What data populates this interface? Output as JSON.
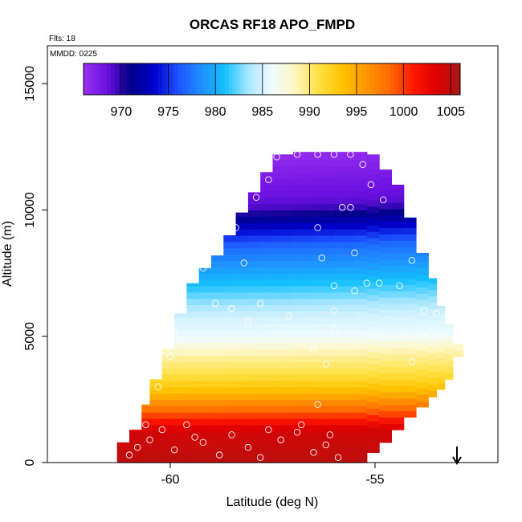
{
  "chart_data": {
    "type": "heatmap",
    "title": "ORCAS RF18 APO_FMPD",
    "annotations": {
      "flights": "Flts: 18",
      "mmdd": "MMDD: 0225"
    },
    "xlabel": "Latitude (deg N)",
    "ylabel": "Altitude (m)",
    "xlim": [
      -63,
      -52
    ],
    "ylim": [
      0,
      16500
    ],
    "xticks": [
      -60,
      -55
    ],
    "xtick_labels": [
      "-60",
      "-55"
    ],
    "yticks": [
      0,
      5000,
      10000,
      15000
    ],
    "ytick_labels": [
      "0",
      "5000",
      "10000",
      "15000"
    ],
    "colorbar": {
      "min": 966,
      "max": 1006,
      "ticks": [
        970,
        975,
        980,
        985,
        990,
        995,
        1000,
        1005
      ],
      "tick_labels": [
        "970",
        "975",
        "980",
        "985",
        "990",
        "995",
        "1000",
        "1005"
      ],
      "colors": [
        "#9a30f0",
        "#6a10e0",
        "#000088",
        "#0000cc",
        "#1e50ff",
        "#1f8fff",
        "#14c0ff",
        "#a8e6ff",
        "#f0fbff",
        "#fff6c0",
        "#ffe040",
        "#ffc300",
        "#ff9600",
        "#ff6a00",
        "#ff1800",
        "#dd0000",
        "#a81818"
      ]
    },
    "field_envelope": [
      [
        -61.3,
        0,
        800
      ],
      [
        -61.0,
        0,
        1300
      ],
      [
        -60.7,
        0,
        2300
      ],
      [
        -60.5,
        0,
        3300
      ],
      [
        -60.2,
        0,
        4500
      ],
      [
        -59.9,
        0,
        5900
      ],
      [
        -59.6,
        0,
        7100
      ],
      [
        -59.3,
        0,
        7700
      ],
      [
        -59.0,
        0,
        8200
      ],
      [
        -58.7,
        0,
        9000
      ],
      [
        -58.4,
        0,
        9900
      ],
      [
        -58.1,
        0,
        10700
      ],
      [
        -57.8,
        0,
        11500
      ],
      [
        -57.5,
        0,
        12200
      ],
      [
        -57.0,
        0,
        12300
      ],
      [
        -56.5,
        0,
        12300
      ],
      [
        -56.0,
        0,
        12300
      ],
      [
        -55.5,
        0,
        12300
      ],
      [
        -55.2,
        400,
        12200
      ],
      [
        -54.9,
        800,
        11600
      ],
      [
        -54.6,
        1300,
        11000
      ],
      [
        -54.3,
        1800,
        9700
      ],
      [
        -54.0,
        2200,
        8300
      ],
      [
        -53.7,
        2600,
        7300
      ],
      [
        -53.5,
        2900,
        6200
      ],
      [
        -53.3,
        3300,
        5500
      ],
      [
        -53.1,
        4200,
        4700
      ]
    ],
    "profile_levels": [
      [
        0,
        1005
      ],
      [
        1300,
        1004
      ],
      [
        2000,
        999
      ],
      [
        2800,
        994
      ],
      [
        3500,
        991
      ],
      [
        4300,
        989
      ],
      [
        5000,
        986
      ],
      [
        5800,
        985
      ],
      [
        6800,
        982
      ],
      [
        7800,
        979
      ],
      [
        8600,
        977
      ],
      [
        9400,
        973
      ],
      [
        10200,
        969
      ],
      [
        11000,
        968
      ],
      [
        11800,
        967
      ],
      [
        12500,
        966
      ]
    ],
    "observations": [
      [
        -61.0,
        300
      ],
      [
        -60.8,
        600
      ],
      [
        -60.5,
        900
      ],
      [
        -60.2,
        1300
      ],
      [
        -59.9,
        500
      ],
      [
        -59.6,
        1500
      ],
      [
        -59.2,
        800
      ],
      [
        -58.8,
        300
      ],
      [
        -58.5,
        1100
      ],
      [
        -58.1,
        600
      ],
      [
        -57.8,
        200
      ],
      [
        -57.3,
        900
      ],
      [
        -56.9,
        1200
      ],
      [
        -56.5,
        400
      ],
      [
        -56.2,
        700
      ],
      [
        -55.9,
        200
      ],
      [
        -61.1,
        1100
      ],
      [
        -60.6,
        1500
      ],
      [
        -59.4,
        1000
      ],
      [
        -57.6,
        1300
      ],
      [
        -56.8,
        1500
      ],
      [
        -56.1,
        1100
      ],
      [
        -60.3,
        3000
      ],
      [
        -60.0,
        4200
      ],
      [
        -59.9,
        5200
      ],
      [
        -59.7,
        6900
      ],
      [
        -59.2,
        7700
      ],
      [
        -58.9,
        6300
      ],
      [
        -58.5,
        6100
      ],
      [
        -58.2,
        7900
      ],
      [
        -58.4,
        9300
      ],
      [
        -57.9,
        10500
      ],
      [
        -57.6,
        11200
      ],
      [
        -57.4,
        12100
      ],
      [
        -56.9,
        12200
      ],
      [
        -56.4,
        12200
      ],
      [
        -56.0,
        12200
      ],
      [
        -55.6,
        12200
      ],
      [
        -55.3,
        11800
      ],
      [
        -55.1,
        11000
      ],
      [
        -54.8,
        10400
      ],
      [
        -55.8,
        10100
      ],
      [
        -55.6,
        10100
      ],
      [
        -56.4,
        9300
      ],
      [
        -55.5,
        8300
      ],
      [
        -56.3,
        8100
      ],
      [
        -55.2,
        7100
      ],
      [
        -54.9,
        7100
      ],
      [
        -54.4,
        7000
      ],
      [
        -54.1,
        8000
      ],
      [
        -53.8,
        6000
      ],
      [
        -53.5,
        5900
      ],
      [
        -53.4,
        5000
      ],
      [
        -54.1,
        4000
      ],
      [
        -54.3,
        5000
      ],
      [
        -55.5,
        6800
      ],
      [
        -56.0,
        7000
      ],
      [
        -56.0,
        6000
      ],
      [
        -56.0,
        5300
      ],
      [
        -56.5,
        4500
      ],
      [
        -56.2,
        3900
      ],
      [
        -56.4,
        2300
      ],
      [
        -57.1,
        5800
      ],
      [
        -57.8,
        6300
      ],
      [
        -58.1,
        5600
      ],
      [
        -59.4,
        8000
      ]
    ],
    "marker": {
      "latitude": -53.0,
      "label": "arrow"
    }
  }
}
